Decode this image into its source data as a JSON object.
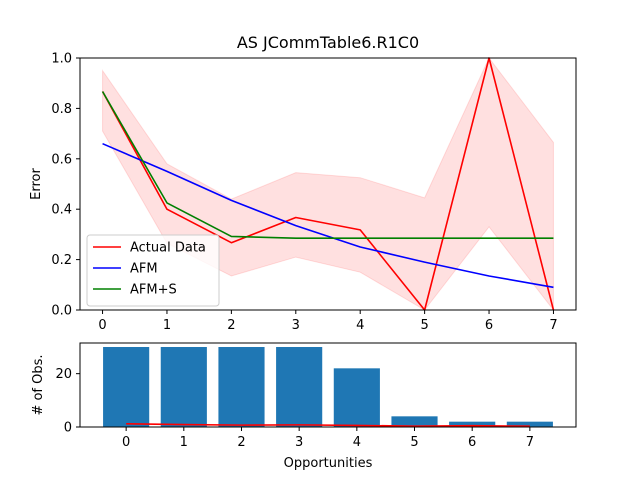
{
  "chart_data": [
    {
      "type": "line",
      "title": "AS JCommTable6.R1C0",
      "xlabel": "",
      "ylabel": "Error",
      "xlim": [
        -0.35,
        7.35
      ],
      "ylim": [
        0.0,
        1.0
      ],
      "x": [
        0,
        1,
        2,
        3,
        4,
        5,
        6,
        7
      ],
      "x_ticks": [
        "0",
        "1",
        "2",
        "3",
        "4",
        "5",
        "6",
        "7"
      ],
      "y_ticks": [
        "0.0",
        "0.2",
        "0.4",
        "0.6",
        "0.8",
        "1.0"
      ],
      "y_tick_values": [
        0.0,
        0.2,
        0.4,
        0.6,
        0.8,
        1.0
      ],
      "grid": false,
      "legend_placement": "lower-left",
      "series": [
        {
          "name": "Actual Data",
          "color": "#ff0000",
          "values": [
            0.867,
            0.4,
            0.267,
            0.367,
            0.318,
            0.0,
            1.0,
            0.0
          ],
          "band_upper": [
            0.95,
            0.58,
            0.44,
            0.545,
            0.525,
            0.445,
            1.0,
            0.665
          ],
          "band_lower": [
            0.71,
            0.265,
            0.135,
            0.21,
            0.15,
            0.0,
            0.33,
            0.0
          ],
          "band_color": "#ffdddd"
        },
        {
          "name": "AFM",
          "color": "#0000ff",
          "values": [
            0.66,
            0.55,
            0.435,
            0.335,
            0.25,
            0.19,
            0.135,
            0.09
          ]
        },
        {
          "name": "AFM+S",
          "color": "#008000",
          "values": [
            0.867,
            0.425,
            0.292,
            0.285,
            0.285,
            0.285,
            0.285,
            0.285
          ]
        }
      ]
    },
    {
      "type": "bar",
      "title": "",
      "xlabel": "Opportunities",
      "ylabel": "# of Obs.",
      "categories": [
        "0",
        "1",
        "2",
        "3",
        "4",
        "5",
        "6",
        "7"
      ],
      "ylim": [
        0,
        31.5
      ],
      "y_ticks": [
        "0",
        "20"
      ],
      "y_tick_values": [
        0,
        20
      ],
      "bar_color": "#1f77b4",
      "values": [
        30,
        30,
        30,
        30,
        22,
        4,
        2,
        2
      ],
      "overlay_line": {
        "color": "#ff0000",
        "values": [
          1.2,
          0.9,
          0.7,
          0.8,
          0.6,
          0.3,
          0.5,
          0.3
        ]
      }
    }
  ]
}
